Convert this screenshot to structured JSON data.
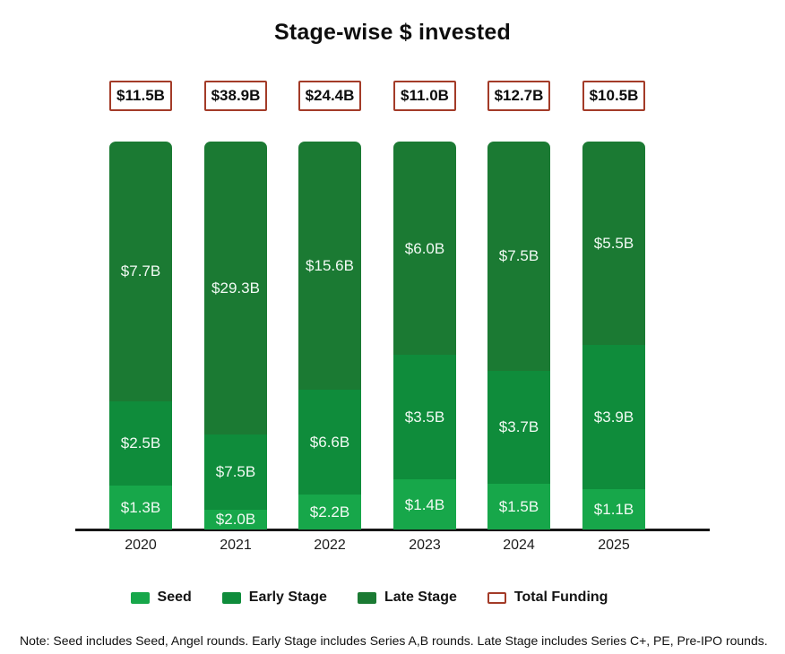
{
  "title": "Stage-wise $ invested",
  "chart_data": {
    "type": "bar",
    "stacked": true,
    "normalized_height": true,
    "title": "Stage-wise $ invested",
    "categories": [
      "2020",
      "2021",
      "2022",
      "2023",
      "2024",
      "2025"
    ],
    "series": [
      {
        "name": "Seed",
        "color": "#17A74A",
        "values": [
          1.3,
          2.0,
          2.2,
          1.4,
          1.5,
          1.1
        ],
        "labels": [
          "$1.3B",
          "$2.0B",
          "$2.2B",
          "$1.4B",
          "$1.5B",
          "$1.1B"
        ]
      },
      {
        "name": "Early Stage",
        "color": "#0F8C3B",
        "values": [
          2.5,
          7.5,
          6.6,
          3.5,
          3.7,
          3.9
        ],
        "labels": [
          "$2.5B",
          "$7.5B",
          "$6.6B",
          "$3.5B",
          "$3.7B",
          "$3.9B"
        ]
      },
      {
        "name": "Late Stage",
        "color": "#1B7A33",
        "values": [
          7.7,
          29.3,
          15.6,
          6.0,
          7.5,
          5.5
        ],
        "labels": [
          "$7.7B",
          "$29.3B",
          "$15.6B",
          "$6.0B",
          "$7.5B",
          "$5.5B"
        ]
      }
    ],
    "totals": {
      "values": [
        11.5,
        38.9,
        24.4,
        11.0,
        12.7,
        10.5
      ],
      "labels": [
        "$11.5B",
        "$38.9B",
        "$24.4B",
        "$11.0B",
        "$12.7B",
        "$10.5B"
      ],
      "border_color": "#A33B28"
    },
    "legend_position": "bottom",
    "unit": "USD billions"
  },
  "legend": {
    "items": [
      {
        "label": "Seed",
        "color": "#17A74A",
        "style": "fill"
      },
      {
        "label": "Early Stage",
        "color": "#0F8C3B",
        "style": "fill"
      },
      {
        "label": "Late Stage",
        "color": "#1B7A33",
        "style": "fill"
      },
      {
        "label": "Total Funding",
        "color": "#A33B28",
        "style": "outline"
      }
    ]
  },
  "note": "Note: Seed includes Seed, Angel rounds. Early Stage includes Series A,B rounds. Late Stage includes Series C+, PE, Pre-IPO rounds."
}
